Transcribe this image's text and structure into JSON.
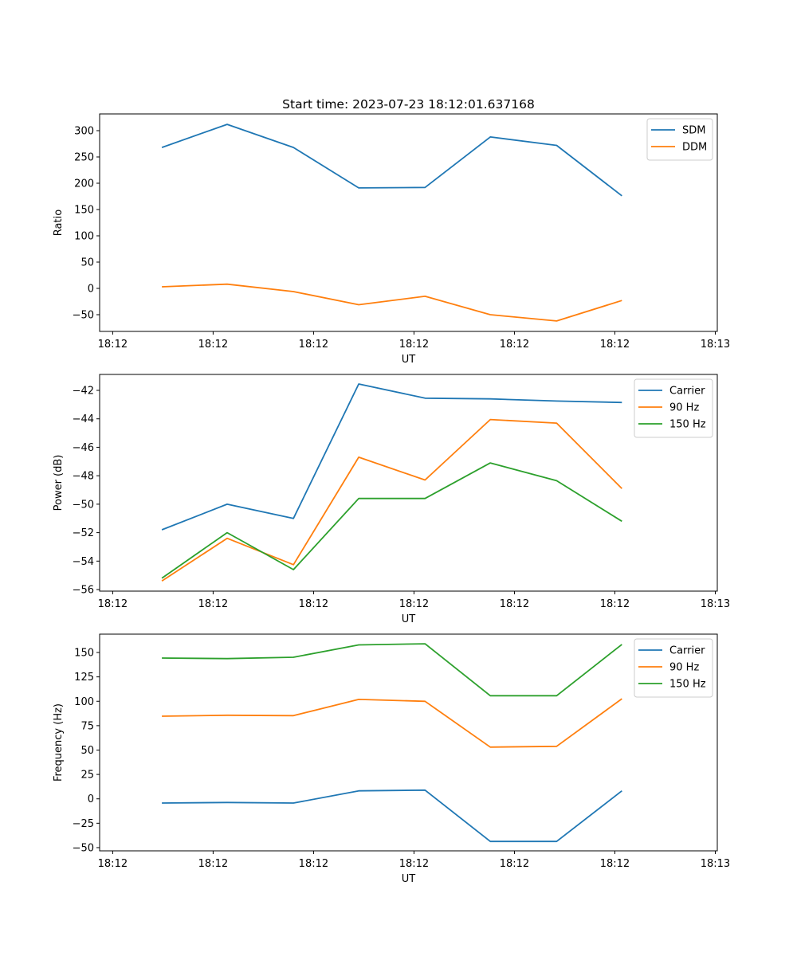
{
  "chart_data": [
    {
      "type": "line",
      "title": "Start time: 2023-07-23 18:12:01.637168",
      "xlabel": "UT",
      "ylabel": "Ratio",
      "x_tick_labels": [
        "18:12",
        "18:12",
        "18:12",
        "18:12",
        "18:12",
        "18:12",
        "18:13"
      ],
      "x_tick_positions": [
        0,
        1,
        2,
        3,
        4,
        5,
        6
      ],
      "xlim": [
        -0.13,
        6.02
      ],
      "x": [
        0.49,
        1.14,
        1.8,
        2.45,
        3.11,
        3.76,
        4.42,
        5.07
      ],
      "y_ticks": [
        -50,
        0,
        50,
        100,
        150,
        200,
        250,
        300
      ],
      "ylim": [
        -81.8,
        331.8
      ],
      "grid": false,
      "legend_position": "top-right",
      "series": [
        {
          "name": "SDM",
          "color": "#1f77b4",
          "values": [
            268,
            312,
            268,
            191,
            192,
            288,
            272,
            176
          ]
        },
        {
          "name": "DDM",
          "color": "#ff7f0e",
          "values": [
            3,
            8,
            -6,
            -31,
            -15,
            -50,
            -62,
            -23
          ]
        }
      ]
    },
    {
      "type": "line",
      "title": "",
      "xlabel": "UT",
      "ylabel": "Power (dB)",
      "x_tick_labels": [
        "18:12",
        "18:12",
        "18:12",
        "18:12",
        "18:12",
        "18:12",
        "18:13"
      ],
      "x_tick_positions": [
        0,
        1,
        2,
        3,
        4,
        5,
        6
      ],
      "xlim": [
        -0.13,
        6.02
      ],
      "x": [
        0.49,
        1.14,
        1.8,
        2.45,
        3.11,
        3.76,
        4.42,
        5.07
      ],
      "y_ticks": [
        -56,
        -54,
        -52,
        -50,
        -48,
        -46,
        -44,
        -42
      ],
      "ylim": [
        -56.11,
        -40.88
      ],
      "grid": false,
      "legend_position": "top-right",
      "series": [
        {
          "name": "Carrier",
          "color": "#1f77b4",
          "values": [
            -51.8,
            -50.0,
            -51.0,
            -41.55,
            -42.55,
            -42.6,
            -42.75,
            -42.85
          ]
        },
        {
          "name": "90 Hz",
          "color": "#ff7f0e",
          "values": [
            -55.4,
            -52.4,
            -54.25,
            -46.7,
            -48.3,
            -44.05,
            -44.3,
            -48.9
          ]
        },
        {
          "name": "150 Hz",
          "color": "#2ca02c",
          "values": [
            -55.2,
            -52.0,
            -54.6,
            -49.6,
            -49.6,
            -47.1,
            -48.35,
            -51.2
          ]
        }
      ]
    },
    {
      "type": "line",
      "title": "",
      "xlabel": "UT",
      "ylabel": "Frequency (Hz)",
      "x_tick_labels": [
        "18:12",
        "18:12",
        "18:12",
        "18:12",
        "18:12",
        "18:12",
        "18:13"
      ],
      "x_tick_positions": [
        0,
        1,
        2,
        3,
        4,
        5,
        6
      ],
      "xlim": [
        -0.13,
        6.02
      ],
      "x": [
        0.49,
        1.14,
        1.8,
        2.45,
        3.11,
        3.76,
        4.42,
        5.07
      ],
      "y_ticks": [
        -50,
        -25,
        0,
        25,
        50,
        75,
        100,
        125,
        150
      ],
      "ylim": [
        -53.3,
        168.8
      ],
      "grid": false,
      "legend_position": "top-right",
      "series": [
        {
          "name": "Carrier",
          "color": "#1f77b4",
          "values": [
            -4.3,
            -3.7,
            -4.3,
            8.2,
            8.9,
            -43.7,
            -43.7,
            8.2
          ]
        },
        {
          "name": "90 Hz",
          "color": "#ff7f0e",
          "values": [
            84.7,
            85.7,
            85.3,
            101.9,
            100.0,
            53.0,
            53.8,
            102.6
          ]
        },
        {
          "name": "150 Hz",
          "color": "#2ca02c",
          "values": [
            144.3,
            143.7,
            145.1,
            157.8,
            158.9,
            105.7,
            105.7,
            158.3
          ]
        }
      ]
    }
  ]
}
